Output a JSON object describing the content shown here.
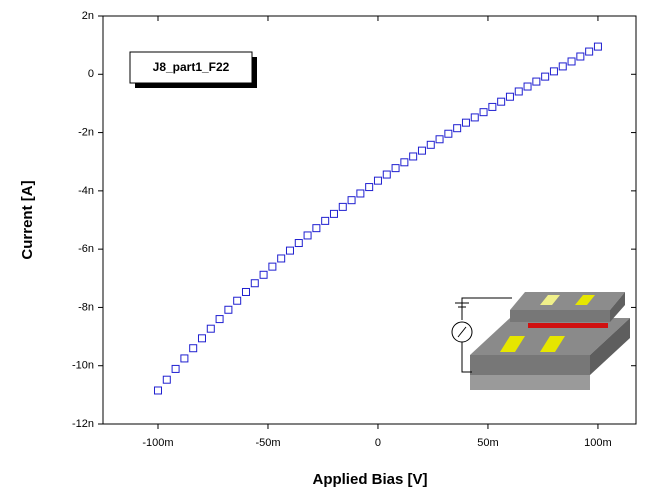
{
  "chart_data": {
    "type": "scatter",
    "x_label": "Applied Bias [V]",
    "y_label": "Current [A]",
    "annotation": "J8_part1_F22",
    "xlim": [
      -0.125,
      0.1173
    ],
    "ylim": [
      -1.2e-08,
      2e-09
    ],
    "xticks": [
      {
        "value": -0.1,
        "label": "-100m"
      },
      {
        "value": -0.05,
        "label": "-50m"
      },
      0,
      {
        "value": 0.05,
        "label": "50m"
      },
      {
        "value": 0.1,
        "label": "100m"
      }
    ],
    "yticks": [
      {
        "value": 2e-09,
        "label": "2n"
      },
      0,
      {
        "value": -2e-09,
        "label": "-2n"
      },
      {
        "value": -4e-09,
        "label": "-4n"
      },
      {
        "value": -6e-09,
        "label": "-6n"
      },
      {
        "value": -8e-09,
        "label": "-8n"
      },
      {
        "value": -1e-08,
        "label": "-10n"
      },
      {
        "value": -1.2e-08,
        "label": "-12n"
      }
    ],
    "series": [
      {
        "color": "#1f1fd0",
        "marker": "square",
        "x": [
          -0.1,
          -0.096,
          -0.092,
          -0.088,
          -0.084,
          -0.08,
          -0.076,
          -0.072,
          -0.068,
          -0.064,
          -0.06,
          -0.056,
          -0.052,
          -0.048,
          -0.044,
          -0.04,
          -0.036,
          -0.032,
          -0.028,
          -0.024,
          -0.02,
          -0.016,
          -0.012,
          -0.008,
          -0.004,
          0,
          0.004,
          0.008,
          0.012,
          0.016,
          0.02,
          0.024,
          0.028,
          0.032,
          0.036,
          0.04,
          0.044,
          0.048,
          0.052,
          0.056,
          0.06,
          0.064,
          0.068,
          0.072,
          0.076,
          0.08,
          0.084,
          0.088,
          0.092,
          0.096,
          0.1
        ],
        "values": [
          -1.085e-08,
          -1.048e-08,
          -1.011e-08,
          -9.75e-09,
          -9.4e-09,
          -9.06e-09,
          -8.73e-09,
          -8.4e-09,
          -8.08e-09,
          -7.77e-09,
          -7.47e-09,
          -7.17e-09,
          -6.88e-09,
          -6.6e-09,
          -6.32e-09,
          -6.05e-09,
          -5.79e-09,
          -5.53e-09,
          -5.28e-09,
          -5.03e-09,
          -4.79e-09,
          -4.55e-09,
          -4.32e-09,
          -4.09e-09,
          -3.87e-09,
          -3.65e-09,
          -3.44e-09,
          -3.22e-09,
          -3.02e-09,
          -2.82e-09,
          -2.62e-09,
          -2.42e-09,
          -2.23e-09,
          -2.04e-09,
          -1.85e-09,
          -1.66e-09,
          -1.48e-09,
          -1.3e-09,
          -1.12e-09,
          -9.4e-10,
          -7.7e-10,
          -5.9e-10,
          -4.2e-10,
          -2.5e-10,
          -8e-11,
          1e-10,
          2.7e-10,
          4.4e-10,
          6.1e-10,
          7.8e-10,
          9.5e-10
        ]
      }
    ]
  }
}
